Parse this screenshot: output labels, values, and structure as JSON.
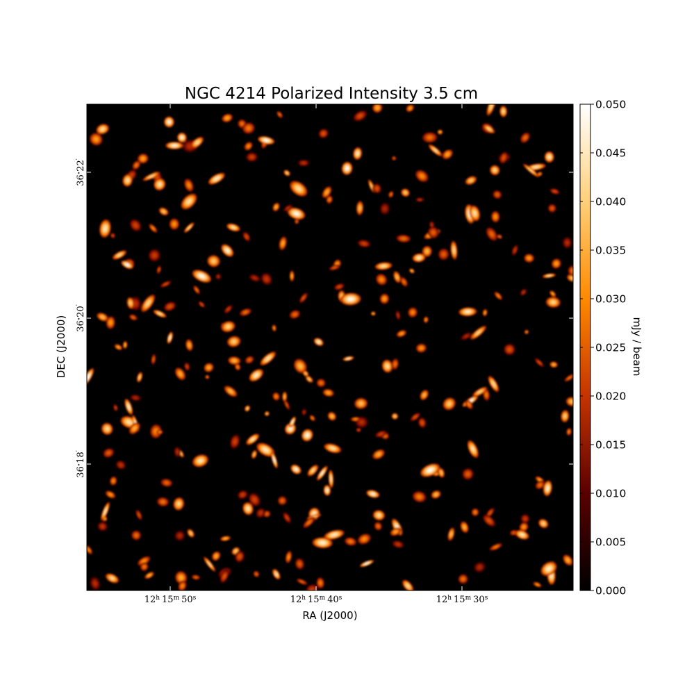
{
  "chart_data": {
    "type": "heatmap",
    "title": "NGC 4214 Polarized Intensity 3.5 cm",
    "xlabel": "RA (J2000)",
    "ylabel": "DEC (J2000)",
    "x_ticks": [
      {
        "h": "12",
        "m": "15",
        "s": "50"
      },
      {
        "h": "12",
        "m": "15",
        "s": "40"
      },
      {
        "h": "12",
        "m": "15",
        "s": "30"
      }
    ],
    "y_ticks": [
      {
        "deg": "36",
        "arcmin": "22"
      },
      {
        "deg": "36",
        "arcmin": "20"
      },
      {
        "deg": "36",
        "arcmin": "18"
      }
    ],
    "colorbar": {
      "label": "mJy / beam",
      "range": [
        0.0,
        0.05
      ],
      "ticks": [
        "0.000",
        "0.005",
        "0.010",
        "0.015",
        "0.020",
        "0.025",
        "0.030",
        "0.035",
        "0.040",
        "0.045",
        "0.050"
      ],
      "colormap": "afmhot",
      "colors": [
        "#000000",
        "#5a0000",
        "#c43400",
        "#ff8a00",
        "#ffd07a",
        "#ffffff"
      ]
    },
    "background": "#000000",
    "grid": false
  }
}
